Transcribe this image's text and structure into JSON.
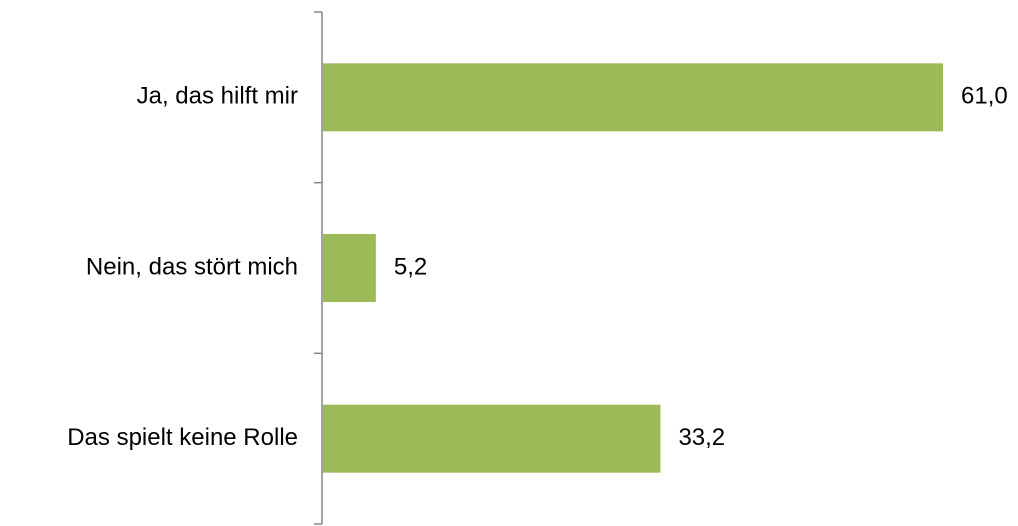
{
  "chart_data": {
    "type": "bar",
    "orientation": "horizontal",
    "categories": [
      "Ja, das hilft mir",
      "Nein, das stört mich",
      "Das spielt keine Rolle"
    ],
    "values": [
      61.0,
      5.2,
      33.2
    ],
    "value_labels": [
      "61,0",
      "5,2",
      "33,2"
    ],
    "xlim": [
      0,
      65
    ],
    "grid": false,
    "legend": "none",
    "bar_color": "#9bbb59",
    "axis_color": "#868686"
  }
}
